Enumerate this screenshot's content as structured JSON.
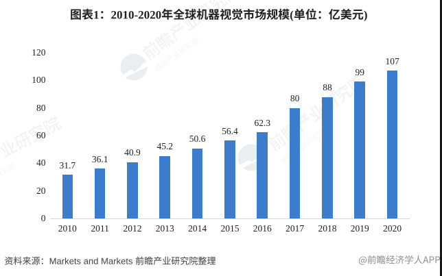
{
  "figure": {
    "title": "图表1：2010-2020年全球机器视觉市场规模(单位：亿美元)",
    "source_note": "资料来源：Markets and Markets 前瞻产业研究院整理",
    "credit": "@前瞻经济学人APP",
    "watermark_text": "前瞻产业研究院"
  },
  "chart_data": {
    "type": "bar",
    "title": "图表1：2010-2020年全球机器视觉市场规模(单位：亿美元)",
    "unit": "亿美元",
    "categories": [
      "2010",
      "2011",
      "2012",
      "2013",
      "2014",
      "2015",
      "2016",
      "2017",
      "2018",
      "2019",
      "2020"
    ],
    "values": [
      31.7,
      36.1,
      40.9,
      45.2,
      50.6,
      56.4,
      62.3,
      80,
      88,
      99,
      107
    ],
    "xlabel": "",
    "ylabel": "",
    "ylim": [
      0,
      120
    ],
    "yticks": [
      0,
      20,
      40,
      60,
      80,
      100,
      120
    ],
    "grid": false,
    "legend": false,
    "bar_color": "#3C7CCB",
    "data_labels": true
  },
  "colors": {
    "bar": "#3C7CCB",
    "axis_line": "#D6D6D6",
    "title_text": "#212121",
    "label_text": "#222222",
    "source_text": "#3F3F3F",
    "credit_text": "#8C8C8C",
    "background": "#FFFFFF",
    "right_border": "#161616"
  }
}
